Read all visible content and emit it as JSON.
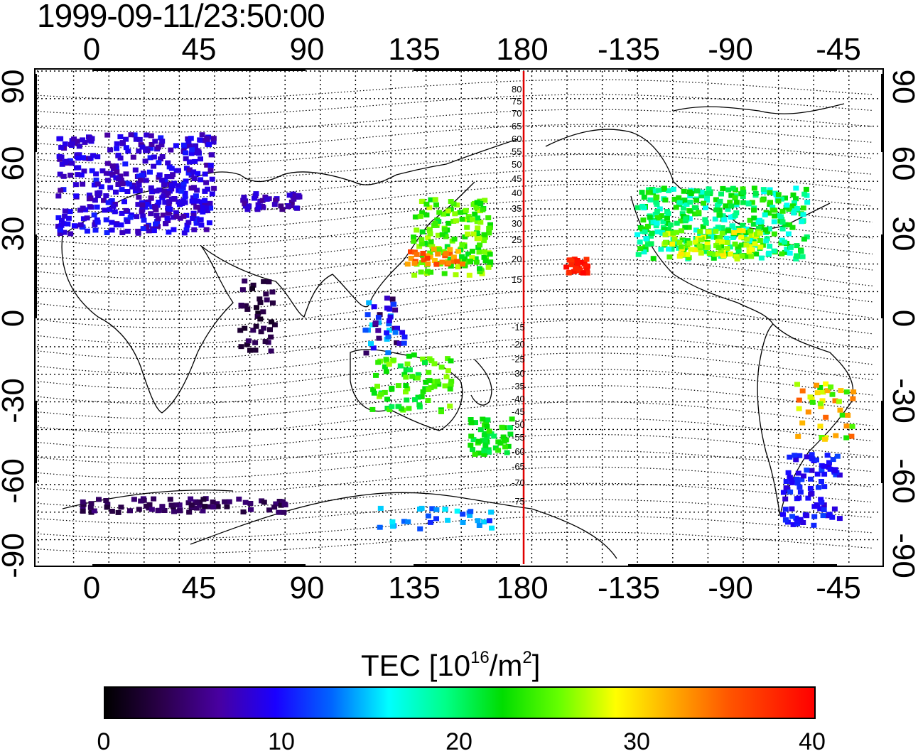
{
  "title": "1999-09-11/23:50:00",
  "lon_ticks_top": [
    "0",
    "45",
    "90",
    "135",
    "180",
    "-135",
    "-90",
    "-45"
  ],
  "lon_ticks_bottom": [
    "0",
    "45",
    "90",
    "135",
    "180",
    "-135",
    "-90",
    "-45"
  ],
  "lat_ticks_left": [
    "90",
    "60",
    "30",
    "0",
    "-30",
    "-60",
    "-90"
  ],
  "lat_ticks_right": [
    "90",
    "60",
    "30",
    "0",
    "-30",
    "-60",
    "-90"
  ],
  "meridian_labels": [
    "80",
    "75",
    "70",
    "65",
    "60",
    "55",
    "50",
    "45",
    "40",
    "35",
    "30",
    "25",
    "20",
    "15",
    "-15",
    "-20",
    "-25",
    "-30",
    "-35",
    "-40",
    "-45",
    "-50",
    "-55",
    "-60",
    "-65",
    "-70",
    "-75"
  ],
  "colorbar": {
    "title_prefix": "TEC  [10",
    "title_exp1": "16",
    "title_mid": "/m",
    "title_exp2": "2",
    "title_suffix": "]",
    "ticks": [
      "0",
      "10",
      "20",
      "30",
      "40"
    ],
    "range": [
      0,
      40
    ]
  },
  "colors": {
    "dateline": "#e00000"
  }
}
